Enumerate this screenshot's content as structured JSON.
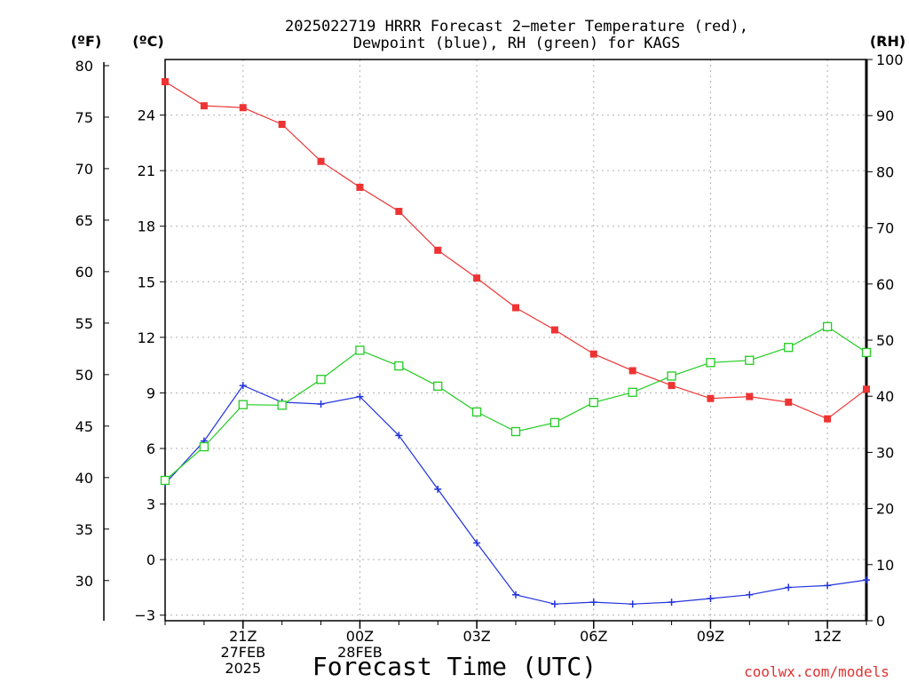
{
  "title_line1": "2025022719 HRRR Forecast 2−meter Temperature (red),",
  "title_line2": "Dewpoint (blue), RH (green) for KAGS",
  "xlabel": "Forecast Time (UTC)",
  "watermark": "coolwx.com/models",
  "unit_f": "(ºF)",
  "unit_c": "(ºC)",
  "unit_rh": "(RH)",
  "chart_data": {
    "type": "line",
    "x": [
      0,
      1,
      2,
      3,
      4,
      5,
      6,
      7,
      8,
      9,
      10,
      11,
      12,
      13,
      14,
      15,
      16,
      17,
      18
    ],
    "x_tick_labels": [
      {
        "x": 2,
        "lines": [
          "21Z",
          "27FEB",
          "2025"
        ]
      },
      {
        "x": 5,
        "lines": [
          "00Z",
          "28FEB"
        ]
      },
      {
        "x": 8,
        "lines": [
          "03Z"
        ]
      },
      {
        "x": 11,
        "lines": [
          "06Z"
        ]
      },
      {
        "x": 14,
        "lines": [
          "09Z"
        ]
      },
      {
        "x": 17,
        "lines": [
          "12Z"
        ]
      }
    ],
    "xlim": [
      0,
      18
    ],
    "ylim_c": [
      -3.3,
      27.0
    ],
    "ylim_f": [
      26.1,
      80.6
    ],
    "ylim_rh": [
      0,
      100
    ],
    "yticks_c": [
      -3,
      0,
      3,
      6,
      9,
      12,
      15,
      18,
      21,
      24
    ],
    "yticks_f": [
      30,
      35,
      40,
      45,
      50,
      55,
      60,
      65,
      70,
      75,
      80
    ],
    "yticks_rh": [
      0,
      10,
      20,
      30,
      40,
      50,
      60,
      70,
      80,
      90,
      100
    ],
    "grid": true,
    "series": [
      {
        "key": "temperature_c",
        "axis": "c",
        "color": "#ee3333",
        "marker": "filled-square",
        "values": [
          25.8,
          24.5,
          24.4,
          23.5,
          21.5,
          20.1,
          18.8,
          16.7,
          15.2,
          13.6,
          12.4,
          11.1,
          10.2,
          9.4,
          8.7,
          8.8,
          8.5,
          7.6,
          9.2
        ]
      },
      {
        "key": "dewpoint_c",
        "axis": "c",
        "color": "#2233dd",
        "marker": "plus",
        "values": [
          4.1,
          6.4,
          9.4,
          8.5,
          8.4,
          8.8,
          6.7,
          3.8,
          0.9,
          -1.9,
          -2.4,
          -2.3,
          -2.4,
          -2.3,
          -2.1,
          -1.9,
          -1.5,
          -1.4,
          -1.1
        ]
      },
      {
        "key": "rh_percent",
        "axis": "rh",
        "color": "#22cc22",
        "marker": "open-square",
        "values": [
          25.0,
          31.0,
          38.5,
          38.4,
          43.0,
          48.2,
          45.4,
          41.8,
          37.2,
          33.7,
          35.3,
          38.9,
          40.7,
          43.6,
          46.0,
          46.4,
          48.7,
          52.4,
          47.8
        ]
      }
    ]
  }
}
